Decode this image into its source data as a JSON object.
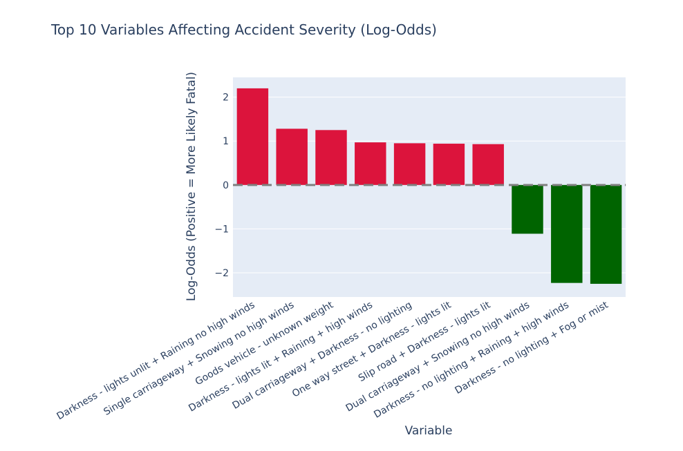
{
  "chart_data": {
    "type": "bar",
    "title": "Top 10 Variables Affecting Accident Severity (Log-Odds)",
    "xlabel": "Variable",
    "ylabel": "Log-Odds (Positive = More Likely Fatal)",
    "categories": [
      "Darkness - lights unlit + Raining no high winds",
      "Single carriageway + Snowing no high winds",
      "Goods vehicle - unknown weight",
      "Darkness - lights lit + Raining + high winds",
      "Dual carriageway + Darkness - no lighting",
      "One way street + Darkness - lights lit",
      "Slip road + Darkness - lights lit",
      "Dual carriageway + Snowing no high winds",
      "Darkness - no lighting + Raining + high winds",
      "Darkness - no lighting + Fog or mist"
    ],
    "values": [
      2.2,
      1.28,
      1.25,
      0.97,
      0.95,
      0.94,
      0.93,
      -1.11,
      -2.23,
      -2.25
    ],
    "ylim": [
      -2.55,
      2.45
    ],
    "yticks": [
      -2,
      -1,
      0,
      1,
      2
    ],
    "ytick_labels": [
      "−2",
      "−1",
      "0",
      "1",
      "2"
    ],
    "reference_line": 0,
    "grid": true,
    "colors": {
      "positive": "#dc143c",
      "negative": "#006400",
      "plot_background": "#e5ecf6",
      "grid": "#ffffff",
      "zero_line": "#808080",
      "text": "#2a3f5f",
      "tick_text": "#2a3f5f"
    }
  }
}
